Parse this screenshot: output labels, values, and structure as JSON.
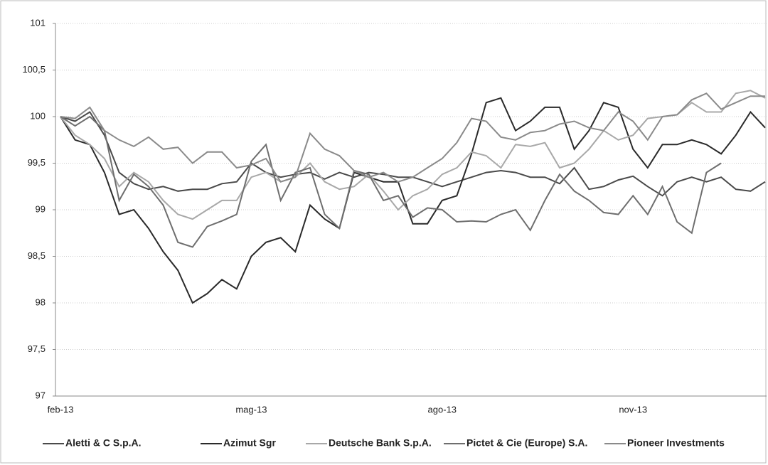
{
  "chart_data": {
    "type": "line",
    "categories": [
      "feb-13",
      null,
      null,
      null,
      null,
      null,
      null,
      null,
      null,
      null,
      null,
      null,
      null,
      "mag-13",
      null,
      null,
      null,
      null,
      null,
      null,
      null,
      null,
      null,
      null,
      null,
      null,
      "ago-13",
      null,
      null,
      null,
      null,
      null,
      null,
      null,
      null,
      null,
      null,
      null,
      null,
      "nov-13",
      null,
      null,
      null,
      null,
      null,
      null,
      null,
      null,
      null
    ],
    "series": [
      {
        "name": "Aletti & C S.p.A.",
        "color": "#4a4a4a",
        "values": [
          100,
          99.95,
          100.05,
          99.8,
          99.4,
          99.28,
          99.22,
          99.25,
          99.2,
          99.22,
          99.22,
          99.28,
          99.3,
          99.5,
          99.4,
          99.35,
          99.38,
          99.4,
          99.33,
          99.4,
          99.35,
          99.4,
          99.38,
          99.35,
          99.35,
          99.3,
          99.25,
          99.3,
          99.35,
          99.4,
          99.42,
          99.4,
          99.35,
          99.35,
          99.28,
          99.45,
          99.22,
          99.25,
          99.32,
          99.36,
          99.25,
          99.15,
          99.3,
          99.35,
          99.3,
          99.35,
          99.22,
          99.2,
          99.3
        ]
      },
      {
        "name": "Azimut Sgr",
        "color": "#2a2a2a",
        "values": [
          100,
          99.75,
          99.7,
          99.4,
          98.95,
          99.0,
          98.8,
          98.55,
          98.35,
          98.0,
          98.1,
          98.25,
          98.15,
          98.5,
          98.65,
          98.7,
          98.55,
          99.05,
          98.9,
          98.8,
          99.4,
          99.35,
          99.3,
          99.3,
          98.85,
          98.85,
          99.1,
          99.15,
          99.6,
          100.15,
          100.2,
          99.85,
          99.95,
          100.1,
          100.1,
          99.65,
          99.85,
          100.15,
          100.1,
          99.65,
          99.45,
          99.7,
          99.7,
          99.75,
          99.7,
          99.6,
          99.8,
          100.05,
          99.88
        ]
      },
      {
        "name": "Deutsche Bank S.p.A.",
        "color": "#a8a8a8",
        "values": [
          100,
          99.8,
          99.7,
          99.55,
          99.25,
          99.4,
          99.3,
          99.1,
          98.95,
          98.9,
          99.0,
          99.1,
          99.1,
          99.35,
          99.4,
          99.3,
          99.35,
          99.5,
          99.3,
          99.22,
          99.25,
          99.38,
          99.2,
          99.0,
          99.15,
          99.22,
          99.38,
          99.45,
          99.62,
          99.58,
          99.45,
          99.7,
          99.68,
          99.72,
          99.45,
          99.5,
          99.65,
          99.85,
          99.75,
          99.8,
          99.98,
          100.0,
          100.02,
          100.15,
          100.05,
          100.05,
          100.25,
          100.28,
          100.2
        ]
      },
      {
        "name": "Pictet & Cie (Europe) S.A.",
        "color": "#6e6e6e",
        "values": [
          100,
          99.9,
          100.0,
          99.85,
          99.1,
          99.38,
          99.25,
          99.05,
          98.65,
          98.6,
          98.82,
          98.88,
          98.95,
          99.52,
          99.7,
          99.1,
          99.4,
          99.45,
          98.95,
          98.8,
          99.42,
          99.38,
          99.1,
          99.15,
          98.92,
          99.02,
          99.0,
          98.87,
          98.88,
          98.87,
          98.95,
          99.0,
          98.78,
          99.1,
          99.38,
          99.2,
          99.1,
          98.97,
          98.95,
          99.15,
          98.95,
          99.25,
          98.87,
          98.75,
          99.4,
          99.5,
          null,
          null,
          null
        ]
      },
      {
        "name": "Pioneer Investments",
        "color": "#8a8a8a",
        "values": [
          100,
          99.98,
          100.1,
          99.85,
          99.75,
          99.68,
          99.78,
          99.65,
          99.67,
          99.5,
          99.62,
          99.62,
          99.45,
          99.48,
          99.55,
          99.3,
          99.35,
          99.82,
          99.65,
          99.58,
          99.42,
          99.35,
          99.4,
          99.3,
          99.35,
          99.45,
          99.55,
          99.72,
          99.98,
          99.95,
          99.78,
          99.75,
          99.83,
          99.85,
          99.92,
          99.95,
          99.88,
          99.85,
          100.05,
          99.95,
          99.75,
          100.0,
          100.02,
          100.18,
          100.25,
          100.08,
          100.15,
          100.22,
          100.22
        ]
      }
    ],
    "ylim": [
      97,
      101
    ],
    "yticks": [
      97,
      {
        "value": 97.5,
        "label": "97,5"
      },
      98,
      {
        "value": 98.5,
        "label": "98,5"
      },
      99,
      {
        "value": 99.5,
        "label": "99,5"
      },
      100,
      {
        "value": 100.5,
        "label": "100,5"
      },
      101
    ],
    "grid": true,
    "legend": "bottom"
  }
}
